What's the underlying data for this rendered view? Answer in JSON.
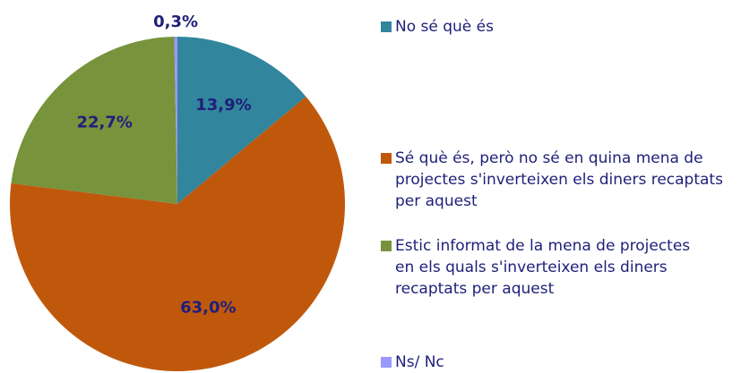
{
  "chart_data": {
    "type": "pie",
    "categories": [
      "No sé què és",
      "Sé què és, però no sé en quina mena de projectes s'inverteixen els diners recaptats per aquest",
      "Estic informat de la mena de projectes en els quals s'inverteixen els diners recaptats per aquest",
      "Ns/ Nc"
    ],
    "values": [
      13.9,
      63.0,
      22.7,
      0.3
    ],
    "value_labels": [
      "13,9%",
      "63,0%",
      "22,7%",
      "0,3%"
    ],
    "colors": [
      "#31859c",
      "#c0580c",
      "#77933c",
      "#9999ff"
    ],
    "legend": "right"
  }
}
